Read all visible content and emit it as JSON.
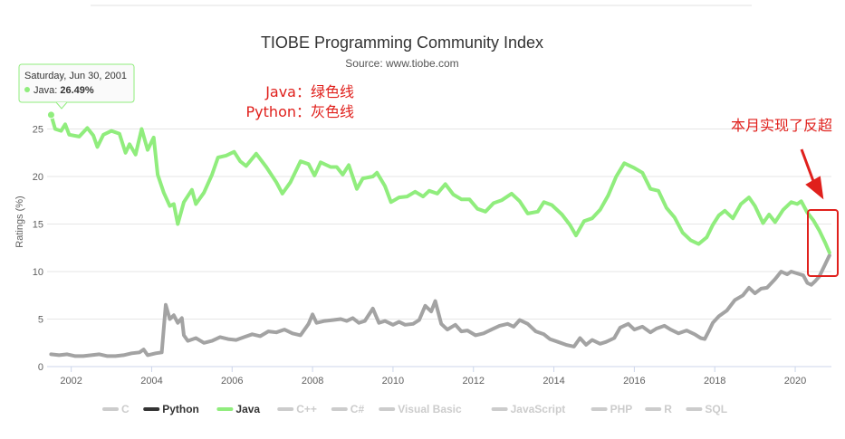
{
  "chart_data": {
    "type": "line",
    "title": "TIOBE Programming Community Index",
    "subtitle": "Source: www.tiobe.com",
    "ylabel": "Ratings (%)",
    "xlabel": "",
    "xlim": [
      2001.4,
      2020.9
    ],
    "ylim": [
      0,
      30
    ],
    "x_ticks": [
      "2002",
      "2004",
      "2006",
      "2008",
      "2010",
      "2012",
      "2014",
      "2016",
      "2018",
      "2020"
    ],
    "y_ticks": [
      "0",
      "5",
      "10",
      "15",
      "20",
      "25"
    ],
    "grid": "horizontal",
    "legend_position": "bottom",
    "series": [
      {
        "name": "Java",
        "color": "#90ed7d",
        "points": [
          [
            2001.5,
            26.49
          ],
          [
            2001.6,
            25.0
          ],
          [
            2001.75,
            24.8
          ],
          [
            2001.85,
            25.5
          ],
          [
            2001.95,
            24.4
          ],
          [
            2002.2,
            24.2
          ],
          [
            2002.4,
            25.1
          ],
          [
            2002.55,
            24.3
          ],
          [
            2002.65,
            23.1
          ],
          [
            2002.8,
            24.4
          ],
          [
            2003.0,
            24.8
          ],
          [
            2003.2,
            24.5
          ],
          [
            2003.35,
            22.5
          ],
          [
            2003.45,
            23.4
          ],
          [
            2003.6,
            22.3
          ],
          [
            2003.75,
            25.0
          ],
          [
            2003.9,
            22.8
          ],
          [
            2004.05,
            24.1
          ],
          [
            2004.15,
            20.2
          ],
          [
            2004.3,
            18.3
          ],
          [
            2004.45,
            16.9
          ],
          [
            2004.55,
            17.1
          ],
          [
            2004.65,
            15.0
          ],
          [
            2004.8,
            17.3
          ],
          [
            2005.0,
            18.6
          ],
          [
            2005.1,
            17.1
          ],
          [
            2005.3,
            18.3
          ],
          [
            2005.5,
            20.2
          ],
          [
            2005.65,
            22.0
          ],
          [
            2005.85,
            22.2
          ],
          [
            2006.05,
            22.6
          ],
          [
            2006.2,
            21.6
          ],
          [
            2006.35,
            21.1
          ],
          [
            2006.6,
            22.4
          ],
          [
            2006.85,
            21.0
          ],
          [
            2007.1,
            19.4
          ],
          [
            2007.25,
            18.2
          ],
          [
            2007.45,
            19.4
          ],
          [
            2007.7,
            21.6
          ],
          [
            2007.9,
            21.3
          ],
          [
            2008.05,
            20.1
          ],
          [
            2008.2,
            21.5
          ],
          [
            2008.45,
            21.0
          ],
          [
            2008.6,
            21.0
          ],
          [
            2008.75,
            20.2
          ],
          [
            2008.9,
            21.2
          ],
          [
            2009.1,
            18.7
          ],
          [
            2009.25,
            19.8
          ],
          [
            2009.5,
            20.0
          ],
          [
            2009.6,
            20.4
          ],
          [
            2009.8,
            19.0
          ],
          [
            2009.95,
            17.3
          ],
          [
            2010.15,
            17.8
          ],
          [
            2010.35,
            17.9
          ],
          [
            2010.55,
            18.4
          ],
          [
            2010.75,
            17.9
          ],
          [
            2010.9,
            18.5
          ],
          [
            2011.1,
            18.2
          ],
          [
            2011.3,
            19.2
          ],
          [
            2011.5,
            18.1
          ],
          [
            2011.7,
            17.6
          ],
          [
            2011.9,
            17.6
          ],
          [
            2012.1,
            16.6
          ],
          [
            2012.3,
            16.3
          ],
          [
            2012.5,
            17.2
          ],
          [
            2012.7,
            17.5
          ],
          [
            2012.95,
            18.2
          ],
          [
            2013.15,
            17.4
          ],
          [
            2013.35,
            16.1
          ],
          [
            2013.6,
            16.3
          ],
          [
            2013.75,
            17.3
          ],
          [
            2013.95,
            17.0
          ],
          [
            2014.2,
            16.0
          ],
          [
            2014.4,
            14.9
          ],
          [
            2014.55,
            13.8
          ],
          [
            2014.75,
            15.3
          ],
          [
            2014.95,
            15.6
          ],
          [
            2015.15,
            16.5
          ],
          [
            2015.35,
            18.0
          ],
          [
            2015.55,
            20.0
          ],
          [
            2015.75,
            21.4
          ],
          [
            2016.0,
            20.9
          ],
          [
            2016.2,
            20.4
          ],
          [
            2016.4,
            18.7
          ],
          [
            2016.6,
            18.5
          ],
          [
            2016.8,
            16.7
          ],
          [
            2017.0,
            15.7
          ],
          [
            2017.2,
            14.1
          ],
          [
            2017.4,
            13.3
          ],
          [
            2017.6,
            12.9
          ],
          [
            2017.8,
            13.6
          ],
          [
            2017.95,
            14.9
          ],
          [
            2018.1,
            15.9
          ],
          [
            2018.25,
            16.4
          ],
          [
            2018.45,
            15.6
          ],
          [
            2018.65,
            17.1
          ],
          [
            2018.85,
            17.8
          ],
          [
            2019.0,
            16.9
          ],
          [
            2019.2,
            15.1
          ],
          [
            2019.35,
            16.0
          ],
          [
            2019.5,
            15.2
          ],
          [
            2019.7,
            16.5
          ],
          [
            2019.9,
            17.3
          ],
          [
            2020.05,
            17.1
          ],
          [
            2020.15,
            17.4
          ],
          [
            2020.3,
            16.2
          ],
          [
            2020.45,
            15.4
          ],
          [
            2020.6,
            14.3
          ],
          [
            2020.75,
            13.0
          ],
          [
            2020.85,
            12.0
          ]
        ]
      },
      {
        "name": "Python",
        "color": "#a3a3a3",
        "points": [
          [
            2001.5,
            1.3
          ],
          [
            2001.7,
            1.2
          ],
          [
            2001.9,
            1.3
          ],
          [
            2002.1,
            1.1
          ],
          [
            2002.3,
            1.1
          ],
          [
            2002.5,
            1.2
          ],
          [
            2002.7,
            1.3
          ],
          [
            2002.9,
            1.1
          ],
          [
            2003.1,
            1.1
          ],
          [
            2003.3,
            1.2
          ],
          [
            2003.5,
            1.4
          ],
          [
            2003.7,
            1.5
          ],
          [
            2003.8,
            1.8
          ],
          [
            2003.9,
            1.2
          ],
          [
            2004.1,
            1.4
          ],
          [
            2004.25,
            1.5
          ],
          [
            2004.35,
            6.5
          ],
          [
            2004.45,
            5.0
          ],
          [
            2004.55,
            5.4
          ],
          [
            2004.65,
            4.6
          ],
          [
            2004.75,
            5.1
          ],
          [
            2004.8,
            3.3
          ],
          [
            2004.9,
            2.7
          ],
          [
            2005.1,
            3.0
          ],
          [
            2005.3,
            2.5
          ],
          [
            2005.5,
            2.7
          ],
          [
            2005.7,
            3.1
          ],
          [
            2005.9,
            2.9
          ],
          [
            2006.1,
            2.8
          ],
          [
            2006.3,
            3.1
          ],
          [
            2006.5,
            3.4
          ],
          [
            2006.7,
            3.2
          ],
          [
            2006.9,
            3.7
          ],
          [
            2007.1,
            3.6
          ],
          [
            2007.3,
            3.9
          ],
          [
            2007.5,
            3.5
          ],
          [
            2007.7,
            3.3
          ],
          [
            2007.9,
            4.5
          ],
          [
            2008.0,
            5.5
          ],
          [
            2008.1,
            4.6
          ],
          [
            2008.3,
            4.8
          ],
          [
            2008.5,
            4.9
          ],
          [
            2008.7,
            5.0
          ],
          [
            2008.85,
            4.8
          ],
          [
            2009.0,
            5.1
          ],
          [
            2009.15,
            4.6
          ],
          [
            2009.3,
            4.8
          ],
          [
            2009.5,
            6.1
          ],
          [
            2009.65,
            4.6
          ],
          [
            2009.8,
            4.8
          ],
          [
            2010.0,
            4.4
          ],
          [
            2010.15,
            4.7
          ],
          [
            2010.3,
            4.4
          ],
          [
            2010.5,
            4.5
          ],
          [
            2010.65,
            4.9
          ],
          [
            2010.8,
            6.4
          ],
          [
            2010.95,
            5.8
          ],
          [
            2011.05,
            6.9
          ],
          [
            2011.2,
            4.5
          ],
          [
            2011.35,
            3.9
          ],
          [
            2011.55,
            4.4
          ],
          [
            2011.7,
            3.7
          ],
          [
            2011.85,
            3.8
          ],
          [
            2012.05,
            3.3
          ],
          [
            2012.25,
            3.5
          ],
          [
            2012.45,
            3.9
          ],
          [
            2012.65,
            4.3
          ],
          [
            2012.85,
            4.5
          ],
          [
            2013.0,
            4.2
          ],
          [
            2013.15,
            4.9
          ],
          [
            2013.35,
            4.5
          ],
          [
            2013.55,
            3.7
          ],
          [
            2013.75,
            3.4
          ],
          [
            2013.9,
            2.9
          ],
          [
            2014.1,
            2.6
          ],
          [
            2014.3,
            2.3
          ],
          [
            2014.5,
            2.1
          ],
          [
            2014.65,
            3.0
          ],
          [
            2014.8,
            2.3
          ],
          [
            2014.95,
            2.8
          ],
          [
            2015.15,
            2.4
          ],
          [
            2015.3,
            2.6
          ],
          [
            2015.5,
            3.0
          ],
          [
            2015.65,
            4.1
          ],
          [
            2015.85,
            4.5
          ],
          [
            2016.0,
            3.9
          ],
          [
            2016.2,
            4.2
          ],
          [
            2016.4,
            3.6
          ],
          [
            2016.55,
            4.0
          ],
          [
            2016.75,
            4.3
          ],
          [
            2016.9,
            3.9
          ],
          [
            2017.1,
            3.5
          ],
          [
            2017.3,
            3.8
          ],
          [
            2017.5,
            3.4
          ],
          [
            2017.65,
            3.0
          ],
          [
            2017.75,
            2.9
          ],
          [
            2017.85,
            3.7
          ],
          [
            2017.95,
            4.6
          ],
          [
            2018.1,
            5.3
          ],
          [
            2018.3,
            5.9
          ],
          [
            2018.5,
            7.0
          ],
          [
            2018.7,
            7.5
          ],
          [
            2018.85,
            8.3
          ],
          [
            2019.0,
            7.7
          ],
          [
            2019.15,
            8.2
          ],
          [
            2019.3,
            8.3
          ],
          [
            2019.5,
            9.2
          ],
          [
            2019.65,
            10.0
          ],
          [
            2019.8,
            9.7
          ],
          [
            2019.9,
            10.0
          ],
          [
            2020.05,
            9.8
          ],
          [
            2020.2,
            9.6
          ],
          [
            2020.3,
            8.8
          ],
          [
            2020.4,
            8.6
          ],
          [
            2020.5,
            9.0
          ],
          [
            2020.6,
            9.5
          ],
          [
            2020.75,
            10.8
          ],
          [
            2020.85,
            11.7
          ]
        ]
      }
    ],
    "legend": [
      {
        "name": "C",
        "color": "#cccccc",
        "text_color": "#cccccc"
      },
      {
        "name": "Python",
        "color": "#333333",
        "text_color": "#333333"
      },
      {
        "name": "Java",
        "color": "#90ed7d",
        "text_color": "#333333"
      },
      {
        "name": "C++",
        "color": "#cccccc",
        "text_color": "#cccccc"
      },
      {
        "name": "C#",
        "color": "#cccccc",
        "text_color": "#cccccc"
      },
      {
        "name": "Visual Basic",
        "color": "#cccccc",
        "text_color": "#cccccc"
      },
      {
        "name": "JavaScript",
        "color": "#cccccc",
        "text_color": "#cccccc"
      },
      {
        "name": "PHP",
        "color": "#cccccc",
        "text_color": "#cccccc"
      },
      {
        "name": "R",
        "color": "#cccccc",
        "text_color": "#cccccc"
      },
      {
        "name": "SQL",
        "color": "#cccccc",
        "text_color": "#cccccc"
      }
    ],
    "tooltip": {
      "date": "Saturday, Jun 30, 2001",
      "series": "Java",
      "value_text": "26.49%"
    },
    "annotations": [
      "Java：绿色线",
      "Python：灰色线",
      "本月实现了反超"
    ]
  },
  "colors": {
    "accent_red": "#e0201c",
    "grid": "#e6e6e6"
  }
}
